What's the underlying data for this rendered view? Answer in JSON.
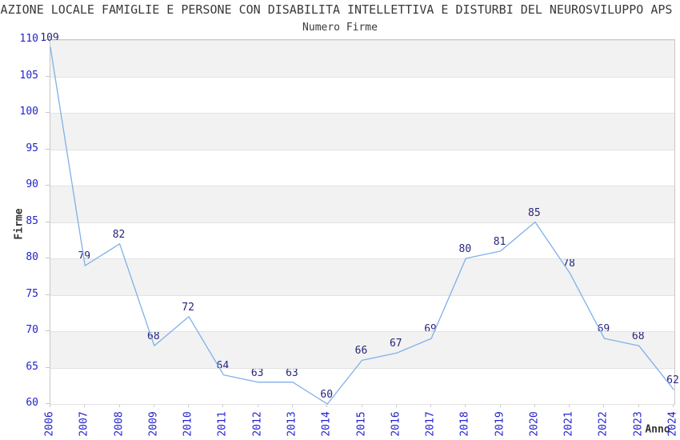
{
  "header": {
    "title": "IAZIONE LOCALE FAMIGLIE E PERSONE CON DISABILITA INTELLETTIVA E DISTURBI DEL NEUROSVILUPPO APS N",
    "subtitle": "Numero Firme"
  },
  "chart_data": {
    "type": "line",
    "title": "Numero Firme",
    "xlabel": "Anno",
    "ylabel": "Firme",
    "categories": [
      2006,
      2007,
      2008,
      2009,
      2010,
      2011,
      2012,
      2013,
      2014,
      2015,
      2016,
      2017,
      2018,
      2019,
      2020,
      2021,
      2022,
      2023,
      2024
    ],
    "values": [
      109,
      79,
      82,
      68,
      72,
      64,
      63,
      63,
      60,
      66,
      67,
      69,
      80,
      81,
      85,
      78,
      69,
      68,
      62
    ],
    "ylim": [
      60,
      110
    ],
    "ytick_step": 5,
    "yticks": [
      60,
      65,
      70,
      75,
      80,
      85,
      90,
      95,
      100,
      105,
      110
    ],
    "grid": "horizontal",
    "background_bands": "alternating gray/white every 5 units, gray below multiples of 10",
    "legend_position": "none",
    "data_labels_shown": true
  },
  "colors": {
    "line": "#7fb0e8",
    "tick_label": "#2323cd",
    "data_label": "#26267a",
    "band": "#f2f2f2",
    "gridline": "#e2e2e2",
    "axis_border": "#c8c8c8",
    "title_text": "#3a3a3a"
  }
}
